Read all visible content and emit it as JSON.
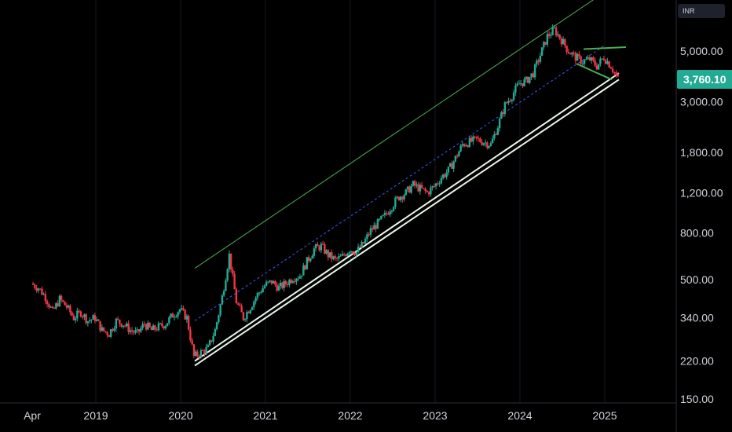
{
  "header": {
    "currency": "INR"
  },
  "last_price": {
    "label": "3,760.10",
    "value": 3760.1,
    "color": "#22ab94"
  },
  "colors": {
    "background": "#000000",
    "candle_up": "#22ab94",
    "candle_down": "#f23645",
    "channel_upper": "#4caf50",
    "channel_lower": "#e8f5e9",
    "mid_dotted": "#3d5afe",
    "wedge": "#4caf50",
    "axis_text": "#d1d4dc"
  },
  "chart_data": {
    "type": "candlestick",
    "title": "",
    "scale": "log",
    "ylim": [
      150,
      8000
    ],
    "xlim": [
      "2018-03",
      "2025-09"
    ],
    "x_ticks": [
      "Apr",
      "2019",
      "2020",
      "2021",
      "2022",
      "2023",
      "2024",
      "2025"
    ],
    "y_ticks": [
      "5,000.00",
      "3,000.00",
      "1,800.00",
      "1,200.00",
      "800.00",
      "500.00",
      "340.00",
      "220.00",
      "150.00"
    ],
    "y_tick_values": [
      5000,
      3000,
      1800,
      1200,
      800,
      500,
      340,
      220,
      150
    ],
    "price_path": [
      [
        "2018-04",
        480
      ],
      [
        "2018-05",
        460
      ],
      [
        "2018-06",
        420
      ],
      [
        "2018-07",
        360
      ],
      [
        "2018-08",
        410
      ],
      [
        "2018-09",
        380
      ],
      [
        "2018-10",
        340
      ],
      [
        "2018-11",
        360
      ],
      [
        "2018-12",
        330
      ],
      [
        "2019-01",
        340
      ],
      [
        "2019-02",
        300
      ],
      [
        "2019-03",
        290
      ],
      [
        "2019-04",
        330
      ],
      [
        "2019-05",
        320
      ],
      [
        "2019-06",
        300
      ],
      [
        "2019-07",
        290
      ],
      [
        "2019-08",
        320
      ],
      [
        "2019-09",
        300
      ],
      [
        "2019-10",
        310
      ],
      [
        "2019-11",
        320
      ],
      [
        "2019-12",
        350
      ],
      [
        "2020-01",
        370
      ],
      [
        "2020-02",
        340
      ],
      [
        "2020-03",
        230
      ],
      [
        "2020-04",
        240
      ],
      [
        "2020-05",
        250
      ],
      [
        "2020-06",
        300
      ],
      [
        "2020-07",
        420
      ],
      [
        "2020-08",
        640
      ],
      [
        "2020-09",
        400
      ],
      [
        "2020-10",
        340
      ],
      [
        "2020-11",
        380
      ],
      [
        "2020-12",
        430
      ],
      [
        "2021-01",
        470
      ],
      [
        "2021-02",
        490
      ],
      [
        "2021-03",
        460
      ],
      [
        "2021-04",
        480
      ],
      [
        "2021-05",
        510
      ],
      [
        "2021-06",
        520
      ],
      [
        "2021-07",
        600
      ],
      [
        "2021-08",
        680
      ],
      [
        "2021-09",
        700
      ],
      [
        "2021-10",
        640
      ],
      [
        "2021-11",
        610
      ],
      [
        "2021-12",
        630
      ],
      [
        "2022-01",
        680
      ],
      [
        "2022-02",
        660
      ],
      [
        "2022-03",
        720
      ],
      [
        "2022-04",
        820
      ],
      [
        "2022-05",
        880
      ],
      [
        "2022-06",
        950
      ],
      [
        "2022-07",
        1050
      ],
      [
        "2022-08",
        1150
      ],
      [
        "2022-09",
        1200
      ],
      [
        "2022-10",
        1300
      ],
      [
        "2022-11",
        1250
      ],
      [
        "2022-12",
        1200
      ],
      [
        "2023-01",
        1280
      ],
      [
        "2023-02",
        1400
      ],
      [
        "2023-03",
        1500
      ],
      [
        "2023-04",
        1700
      ],
      [
        "2023-05",
        1950
      ],
      [
        "2023-06",
        2000
      ],
      [
        "2023-07",
        2050
      ],
      [
        "2023-08",
        2000
      ],
      [
        "2023-09",
        1950
      ],
      [
        "2023-10",
        2350
      ],
      [
        "2023-11",
        2900
      ],
      [
        "2023-12",
        3200
      ],
      [
        "2024-01",
        3600
      ],
      [
        "2024-02",
        3700
      ],
      [
        "2024-03",
        4000
      ],
      [
        "2024-04",
        4800
      ],
      [
        "2024-05",
        5800
      ],
      [
        "2024-06",
        6200
      ],
      [
        "2024-07",
        5600
      ],
      [
        "2024-08",
        5000
      ],
      [
        "2024-09",
        4700
      ],
      [
        "2024-10",
        4500
      ],
      [
        "2024-11",
        4600
      ],
      [
        "2024-12",
        4300
      ],
      [
        "2025-01",
        4700
      ],
      [
        "2025-02",
        4300
      ],
      [
        "2025-03",
        3760
      ]
    ],
    "trendlines": [
      {
        "kind": "channel-upper",
        "from": [
          "2020-03",
          560
        ],
        "to": [
          "2025-02",
          9500
        ]
      },
      {
        "kind": "channel-lower",
        "from": [
          "2020-03",
          220
        ],
        "to": [
          "2025-03",
          4000
        ]
      },
      {
        "kind": "channel-lower",
        "from": [
          "2020-03",
          210
        ],
        "to": [
          "2025-03",
          3750
        ]
      },
      {
        "kind": "mid-dotted",
        "from": [
          "2020-03",
          330
        ],
        "to": [
          "2025-01",
          5300
        ]
      },
      {
        "kind": "wedge-top",
        "from": [
          "2024-10",
          5100
        ],
        "to": [
          "2025-04",
          5200
        ]
      },
      {
        "kind": "wedge-bottom",
        "from": [
          "2024-09",
          4400
        ],
        "to": [
          "2025-02",
          3750
        ]
      }
    ]
  }
}
